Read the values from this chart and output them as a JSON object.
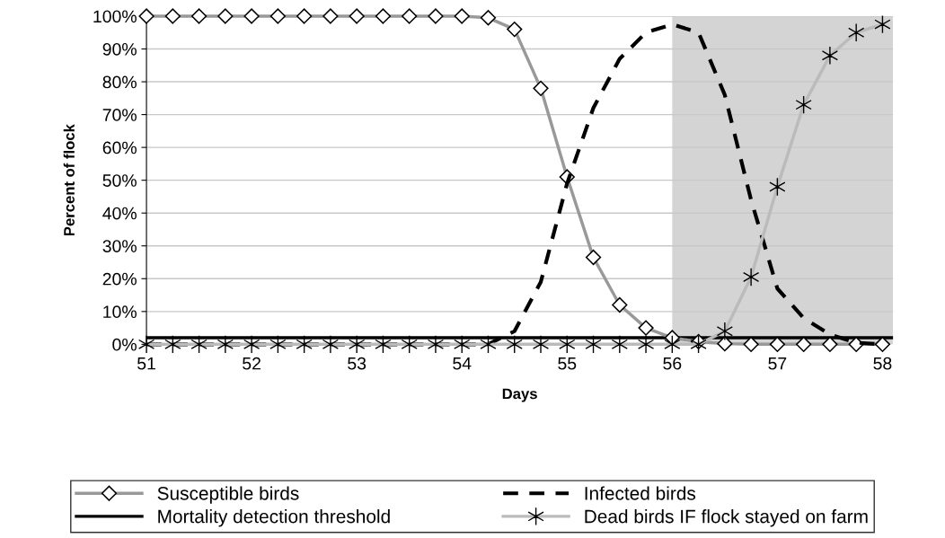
{
  "chart_data": {
    "type": "line",
    "xlabel": "Days",
    "ylabel": "Percent of flock",
    "x": [
      51,
      51.25,
      51.5,
      51.75,
      52,
      52.25,
      52.5,
      52.75,
      53,
      53.25,
      53.5,
      53.75,
      54,
      54.25,
      54.5,
      54.75,
      55,
      55.25,
      55.5,
      55.75,
      56,
      56.25,
      56.5,
      56.75,
      57,
      57.25,
      57.5,
      57.75,
      58
    ],
    "series": [
      {
        "name": "Susceptible birds",
        "color": "#999999",
        "marker": "diamond",
        "line_style": "solid",
        "values": [
          100,
          100,
          100,
          100,
          100,
          100,
          100,
          100,
          100,
          100,
          100,
          100,
          100,
          99.5,
          96,
          78,
          51,
          26.5,
          12,
          5,
          2,
          0.8,
          0.2,
          0,
          0,
          0,
          0,
          0,
          0
        ]
      },
      {
        "name": "Infected birds",
        "color": "#000000",
        "line_style": "dashed",
        "values": [
          0,
          0,
          0,
          0,
          0,
          0,
          0,
          0,
          0,
          0,
          0,
          0,
          0,
          0,
          4,
          19,
          49,
          72,
          87,
          95,
          97.5,
          95,
          76,
          44,
          17,
          8,
          3,
          0.5,
          0
        ]
      },
      {
        "name": "Dead birds IF flock stayed on farm",
        "color": "#bbbbbb",
        "marker": "cross",
        "line_style": "solid",
        "values": [
          0,
          0,
          0,
          0,
          0,
          0,
          0,
          0,
          0,
          0,
          0,
          0,
          0,
          0,
          0,
          0,
          0,
          0,
          0,
          0,
          0,
          0,
          4,
          20.5,
          48,
          73,
          88,
          95,
          97.5
        ]
      }
    ],
    "ref_lines": [
      {
        "axis": "y",
        "value": 2,
        "label": "Mortality detection threshold",
        "color": "#000000",
        "line_style": "solid"
      }
    ],
    "bands": [
      {
        "axis": "x",
        "from": 56,
        "to": 58.1,
        "color": "#d4d4d4"
      }
    ],
    "xlim": [
      51,
      58.1
    ],
    "xticks": [
      51,
      52,
      53,
      54,
      55,
      56,
      57,
      58
    ],
    "ylim": [
      0,
      100
    ],
    "yticks": [
      {
        "value": 0,
        "label": "0%"
      },
      {
        "value": 10,
        "label": "10%"
      },
      {
        "value": 20,
        "label": "20%"
      },
      {
        "value": 30,
        "label": "30%"
      },
      {
        "value": 40,
        "label": "40%"
      },
      {
        "value": 50,
        "label": "50%"
      },
      {
        "value": 60,
        "label": "60%"
      },
      {
        "value": 70,
        "label": "70%"
      },
      {
        "value": 80,
        "label": "80%"
      },
      {
        "value": 90,
        "label": "90%"
      },
      {
        "value": 100,
        "label": "100%"
      }
    ],
    "grid": "y",
    "legend": "bottom"
  }
}
